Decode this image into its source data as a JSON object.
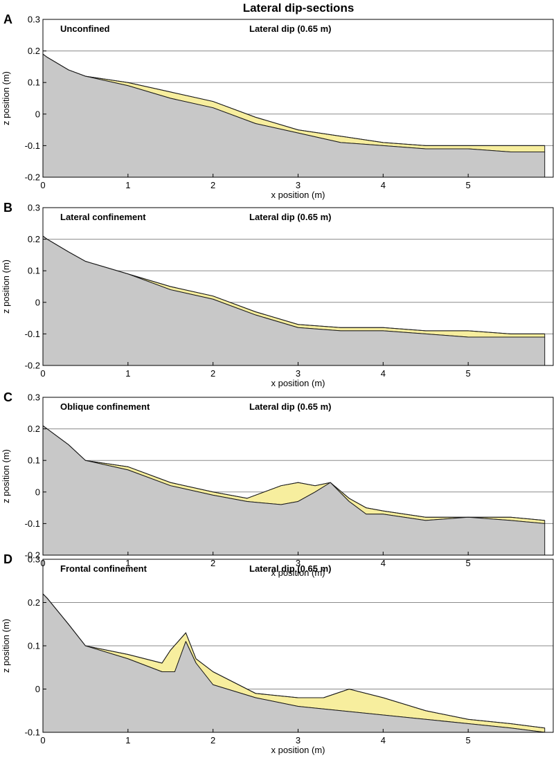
{
  "figure": {
    "title": "Lateral dip-sections"
  },
  "colors": {
    "basement": "#c8c8c8",
    "deposit": "#f7ee9e",
    "outline": "#1a1a1a",
    "grid": "#8a8a8a"
  },
  "chart_data": [
    {
      "type": "area",
      "panel": "A",
      "title": "Unconfined",
      "annotation": "Lateral dip (0.65 m)",
      "xlabel": "x position (m)",
      "ylabel": "z position (m)",
      "xlim": [
        0,
        6
      ],
      "ylim": [
        -0.2,
        0.3
      ],
      "xticks": [
        "0",
        "1",
        "2",
        "3",
        "4",
        "5"
      ],
      "yticks": [
        "-0.2",
        "-0.1",
        "0",
        "0.1",
        "0.2",
        "0.3"
      ],
      "series": [
        {
          "name": "basement surface",
          "x": [
            0,
            0.05,
            0.3,
            0.5,
            1.0,
            1.5,
            2.0,
            2.5,
            3.0,
            3.5,
            4.0,
            4.5,
            5.0,
            5.5,
            5.9
          ],
          "z": [
            0.19,
            0.18,
            0.14,
            0.12,
            0.09,
            0.05,
            0.02,
            -0.03,
            -0.06,
            -0.09,
            -0.1,
            -0.11,
            -0.11,
            -0.12,
            -0.12
          ]
        },
        {
          "name": "top of deposit",
          "x": [
            0,
            0.05,
            0.3,
            0.5,
            1.0,
            1.5,
            2.0,
            2.5,
            3.0,
            3.5,
            4.0,
            4.5,
            5.0,
            5.5,
            5.9
          ],
          "z": [
            0.19,
            0.18,
            0.14,
            0.12,
            0.1,
            0.07,
            0.04,
            -0.01,
            -0.05,
            -0.07,
            -0.09,
            -0.1,
            -0.1,
            -0.1,
            -0.1
          ]
        }
      ]
    },
    {
      "type": "area",
      "panel": "B",
      "title": "Lateral confinement",
      "annotation": "Lateral dip (0.65 m)",
      "xlabel": "x position (m)",
      "ylabel": "z position (m)",
      "xlim": [
        0,
        6
      ],
      "ylim": [
        -0.2,
        0.3
      ],
      "xticks": [
        "0",
        "1",
        "2",
        "3",
        "4",
        "5"
      ],
      "yticks": [
        "-0.2",
        "-0.1",
        "0",
        "0.1",
        "0.2",
        "0.3"
      ],
      "series": [
        {
          "name": "basement surface",
          "x": [
            0,
            0.05,
            0.3,
            0.5,
            1.0,
            1.5,
            2.0,
            2.5,
            3.0,
            3.5,
            4.0,
            4.5,
            5.0,
            5.5,
            5.9
          ],
          "z": [
            0.21,
            0.2,
            0.16,
            0.13,
            0.09,
            0.04,
            0.01,
            -0.04,
            -0.08,
            -0.09,
            -0.09,
            -0.1,
            -0.11,
            -0.11,
            -0.11
          ]
        },
        {
          "name": "top of deposit",
          "x": [
            0,
            0.05,
            0.3,
            0.5,
            1.0,
            1.5,
            2.0,
            2.5,
            3.0,
            3.5,
            4.0,
            4.5,
            5.0,
            5.5,
            5.9
          ],
          "z": [
            0.21,
            0.2,
            0.16,
            0.13,
            0.09,
            0.05,
            0.02,
            -0.03,
            -0.07,
            -0.08,
            -0.08,
            -0.09,
            -0.09,
            -0.1,
            -0.1
          ]
        }
      ]
    },
    {
      "type": "area",
      "panel": "C",
      "title": "Oblique confinement",
      "annotation": "Lateral dip (0.65 m)",
      "xlabel": "x position (m)",
      "ylabel": "z position (m)",
      "xlim": [
        0,
        6
      ],
      "ylim": [
        -0.2,
        0.3
      ],
      "xticks": [
        "0",
        "1",
        "2",
        "3",
        "4",
        "5"
      ],
      "yticks": [
        "-0.2",
        "-0.1",
        "0",
        "0.1",
        "0.2",
        "0.3"
      ],
      "series": [
        {
          "name": "basement surface",
          "x": [
            0,
            0.05,
            0.3,
            0.5,
            1.0,
            1.5,
            2.0,
            2.4,
            2.8,
            3.0,
            3.2,
            3.38,
            3.6,
            3.8,
            4.0,
            4.5,
            5.0,
            5.5,
            5.9
          ],
          "z": [
            0.21,
            0.2,
            0.15,
            0.1,
            0.07,
            0.02,
            -0.01,
            -0.03,
            -0.04,
            -0.03,
            0.0,
            0.03,
            -0.03,
            -0.07,
            -0.07,
            -0.09,
            -0.08,
            -0.09,
            -0.1
          ]
        },
        {
          "name": "top of deposit",
          "x": [
            0,
            0.05,
            0.3,
            0.5,
            1.0,
            1.5,
            2.0,
            2.4,
            2.6,
            2.8,
            3.0,
            3.2,
            3.38,
            3.6,
            3.8,
            4.0,
            4.5,
            5.0,
            5.5,
            5.9
          ],
          "z": [
            0.21,
            0.2,
            0.15,
            0.1,
            0.08,
            0.03,
            0.0,
            -0.02,
            0.0,
            0.02,
            0.03,
            0.02,
            0.03,
            -0.02,
            -0.05,
            -0.06,
            -0.08,
            -0.08,
            -0.08,
            -0.09
          ]
        }
      ]
    },
    {
      "type": "area",
      "panel": "D",
      "title": "Frontal confinement",
      "annotation": "Lateral dip (0.65 m)",
      "xlabel": "x position (m)",
      "ylabel": "z position (m)",
      "xlim": [
        0,
        6
      ],
      "ylim": [
        -0.1,
        0.3
      ],
      "xticks": [
        "0",
        "1",
        "2",
        "3",
        "4",
        "5"
      ],
      "yticks": [
        "-0.1",
        "0",
        "0.1",
        "0.2",
        "0.3"
      ],
      "series": [
        {
          "name": "basement surface",
          "x": [
            0,
            0.05,
            0.3,
            0.5,
            1.0,
            1.4,
            1.55,
            1.68,
            1.8,
            2.0,
            2.5,
            3.0,
            3.5,
            4.0,
            4.5,
            5.0,
            5.5,
            5.9
          ],
          "z": [
            0.22,
            0.21,
            0.15,
            0.1,
            0.07,
            0.04,
            0.04,
            0.11,
            0.06,
            0.01,
            -0.02,
            -0.04,
            -0.05,
            -0.06,
            -0.07,
            -0.08,
            -0.09,
            -0.1
          ]
        },
        {
          "name": "top of deposit",
          "x": [
            0,
            0.05,
            0.3,
            0.5,
            1.0,
            1.4,
            1.5,
            1.68,
            1.8,
            2.0,
            2.5,
            3.0,
            3.3,
            3.6,
            4.0,
            4.5,
            5.0,
            5.5,
            5.9
          ],
          "z": [
            0.22,
            0.21,
            0.15,
            0.1,
            0.08,
            0.06,
            0.09,
            0.13,
            0.07,
            0.04,
            -0.01,
            -0.02,
            -0.02,
            0.0,
            -0.02,
            -0.05,
            -0.07,
            -0.08,
            -0.09
          ]
        }
      ]
    }
  ]
}
